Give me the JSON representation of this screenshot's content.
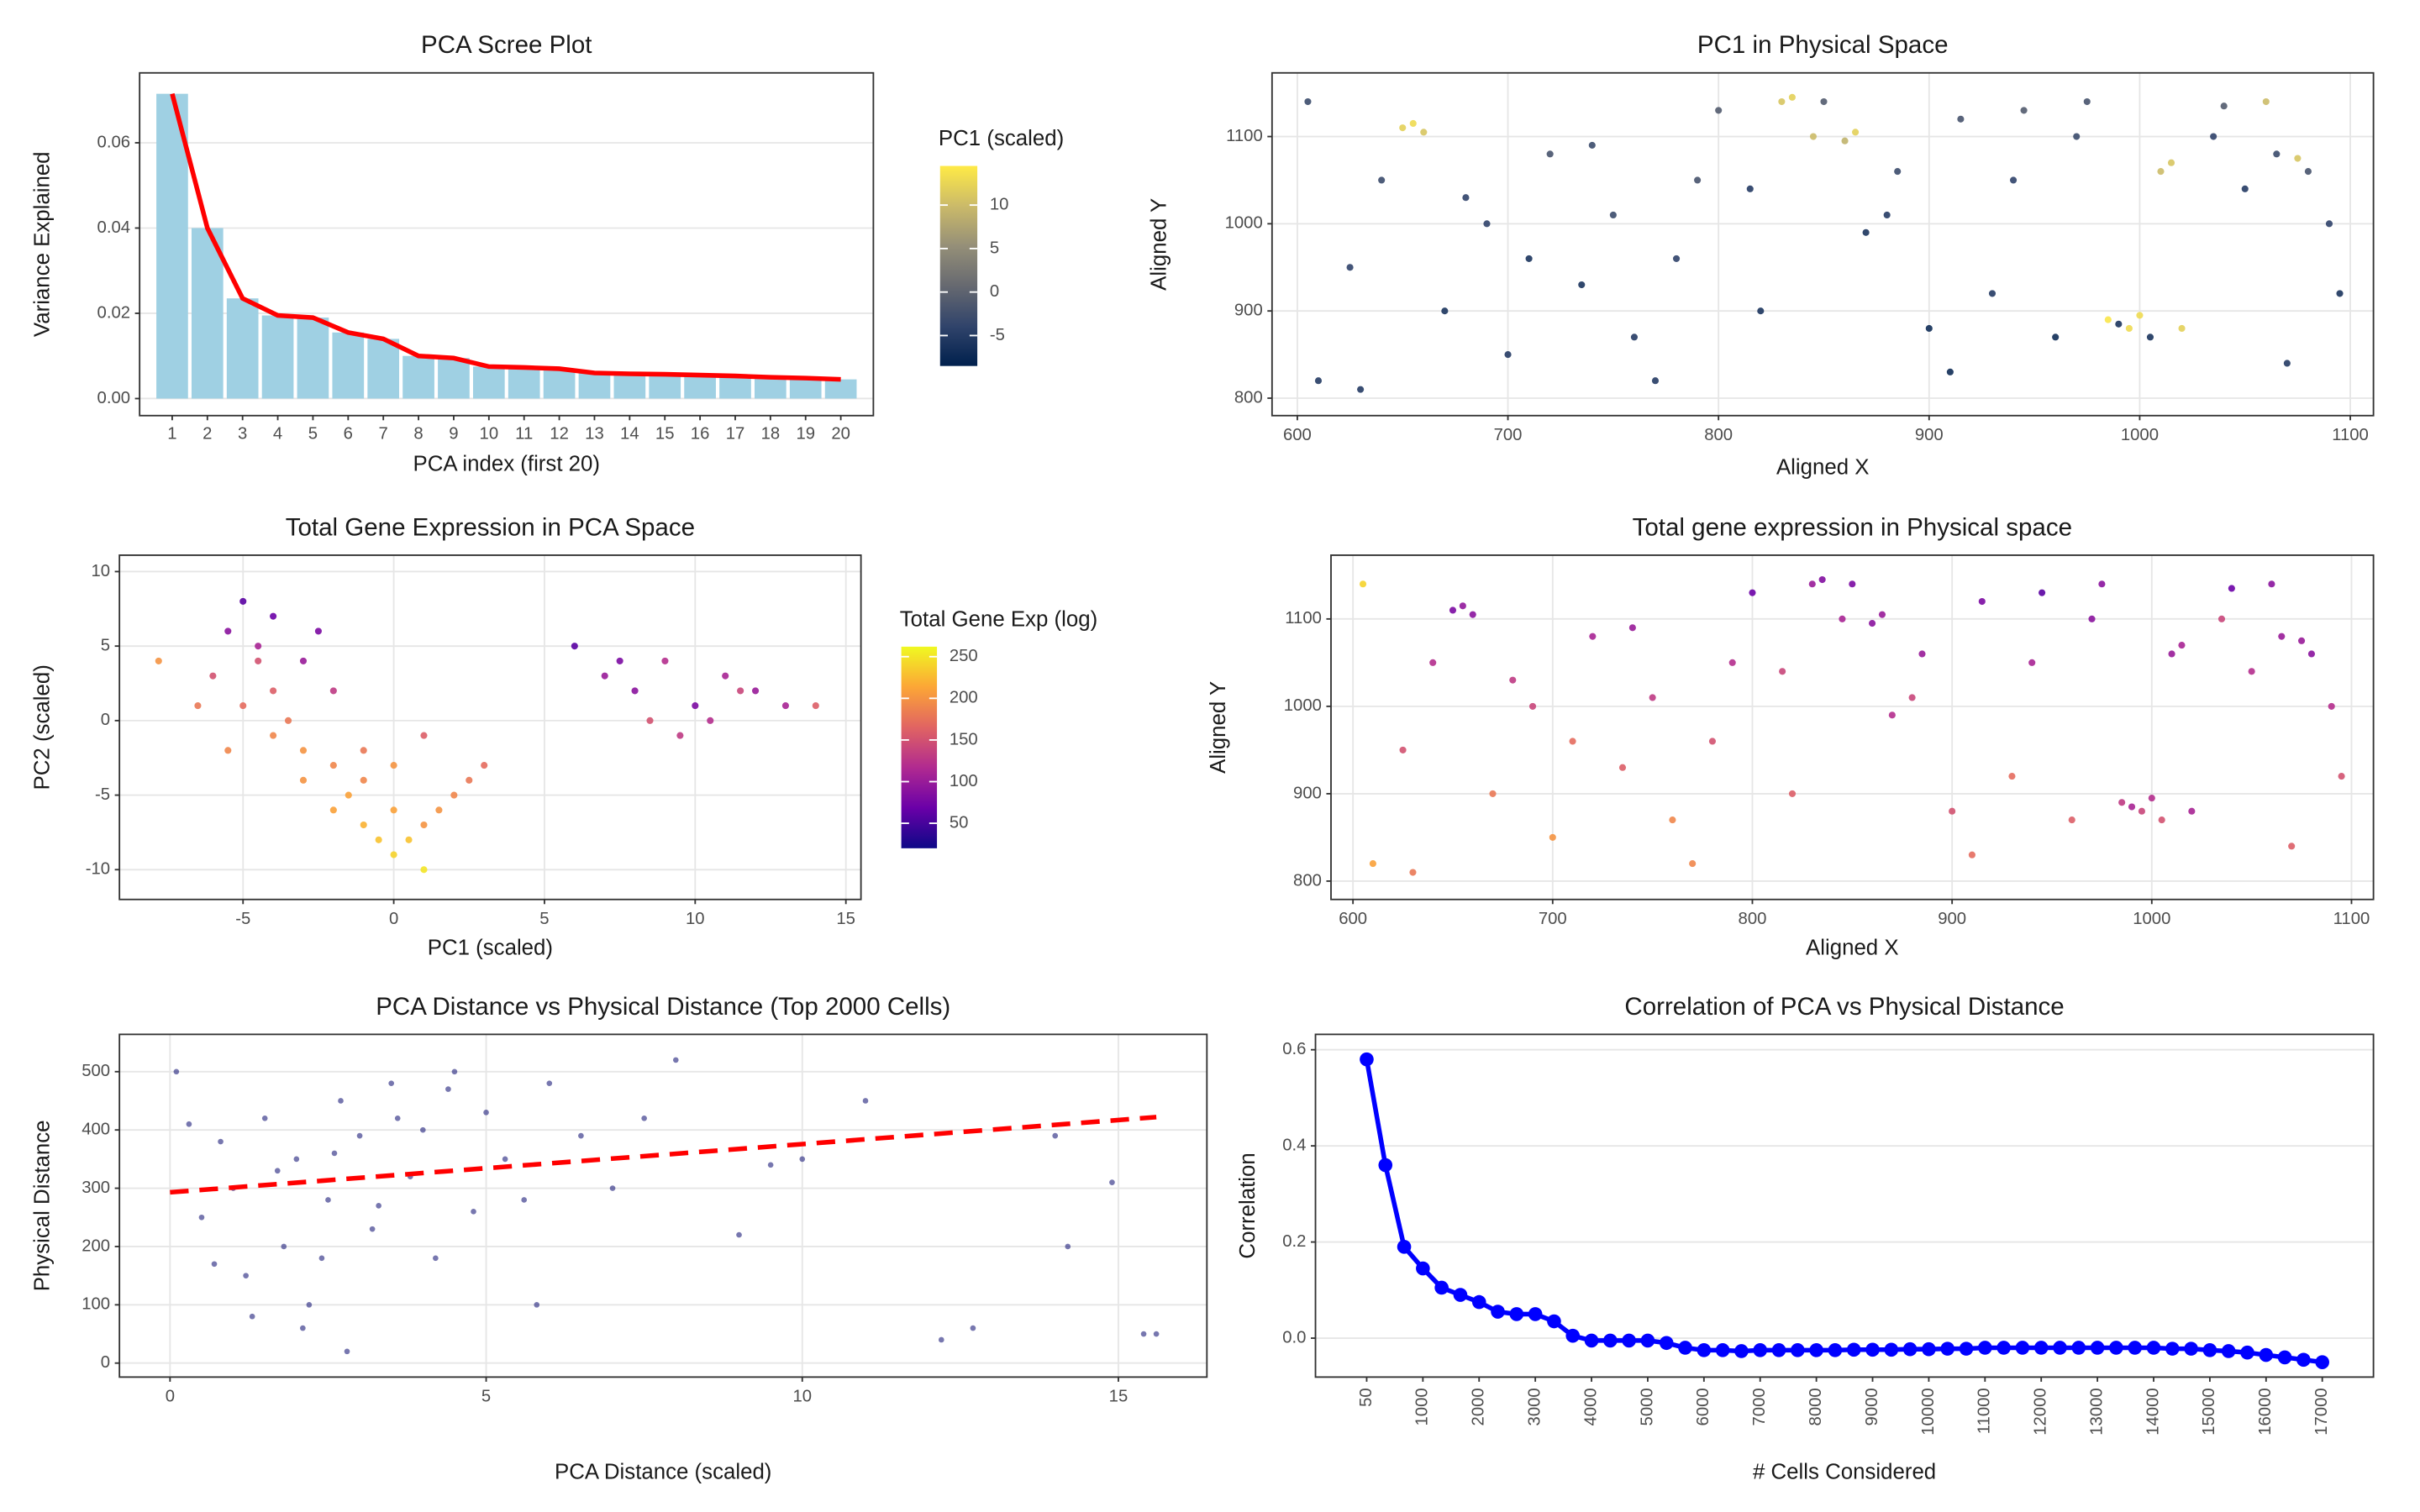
{
  "chart_data": [
    {
      "type": "bar",
      "title": "PCA Scree Plot",
      "xlabel": "PCA index (first 20)",
      "ylabel": "Variance Explained",
      "categories": [
        1,
        2,
        3,
        4,
        5,
        6,
        7,
        8,
        9,
        10,
        11,
        12,
        13,
        14,
        15,
        16,
        17,
        18,
        19,
        20
      ],
      "values": [
        0.0715,
        0.04,
        0.0235,
        0.0195,
        0.019,
        0.0155,
        0.014,
        0.01,
        0.0095,
        0.0075,
        0.0073,
        0.007,
        0.006,
        0.0058,
        0.0057,
        0.0055,
        0.0053,
        0.005,
        0.0048,
        0.0045
      ],
      "color": "#9fd0e3",
      "line_color": "#ff0000",
      "ylim": [
        -0.004,
        0.0764
      ],
      "yticks": [
        {
          "value": 0,
          "label": "0.00"
        },
        {
          "value": 0.02,
          "label": "0.02"
        },
        {
          "value": 0.04,
          "label": "0.04"
        },
        {
          "value": 0.06,
          "label": "0.06"
        }
      ],
      "grid": true
    },
    {
      "type": "scatter",
      "title": "PC1 in Physical Space",
      "xlabel": "Aligned X",
      "ylabel": "Aligned Y",
      "x": [
        610,
        625,
        640,
        650,
        660,
        670,
        690,
        700,
        720,
        735,
        750,
        760,
        780,
        800,
        815,
        830,
        845,
        860,
        870,
        885,
        900,
        915,
        930,
        945,
        960,
        975,
        990,
        1000,
        1010,
        1020,
        1035,
        1050,
        1065,
        1080,
        1095,
        605,
        630,
        680,
        710,
        740,
        770,
        790,
        820,
        850,
        880,
        910,
        940,
        970,
        1005,
        1040,
        1070,
        1090,
        655,
        835,
        865,
        985,
        995,
        1015,
        1060,
        1075
      ],
      "y": [
        820,
        950,
        1050,
        1110,
        1105,
        900,
        1000,
        850,
        1080,
        930,
        1010,
        870,
        960,
        1130,
        1040,
        1140,
        1100,
        1095,
        990,
        1060,
        880,
        1120,
        920,
        1130,
        870,
        1140,
        885,
        895,
        1060,
        880,
        1100,
        1040,
        1080,
        1060,
        920,
        1140,
        810,
        1030,
        960,
        1090,
        820,
        1050,
        900,
        1140,
        1010,
        830,
        1050,
        1100,
        870,
        1135,
        840,
        1000,
        1115,
        1145,
        1105,
        890,
        880,
        1070,
        1140,
        1075
      ],
      "values": [
        -5,
        -4,
        -3,
        12,
        11,
        -6,
        -4,
        -5,
        -2,
        -6,
        -3,
        -5,
        -4,
        -1,
        -5,
        11,
        10,
        9,
        -6,
        -3,
        -7,
        -2,
        -5,
        -1,
        -7,
        -2,
        -6,
        13,
        10,
        12,
        -4,
        -5,
        -3,
        -2,
        -6,
        -3,
        -5,
        -4,
        -6,
        -3,
        -5,
        -2,
        -6,
        -1,
        -5,
        -7,
        -4,
        -3,
        -6,
        -1,
        -5,
        -4,
        13,
        12,
        12,
        14,
        13,
        11,
        10,
        11
      ],
      "xlim": [
        588,
        1111
      ],
      "ylim": [
        780,
        1173
      ],
      "xticks": [
        600,
        700,
        800,
        900,
        1000,
        1100
      ],
      "yticks": [
        800,
        900,
        1000,
        1100
      ],
      "grid": true,
      "colorbar": {
        "title": "PC1 (scaled)",
        "lim": [
          -8.5,
          14.5
        ],
        "ticks": [
          -5,
          0,
          5,
          10
        ],
        "colors": [
          "#00204d",
          "#31446b",
          "#666970",
          "#958f78",
          "#cbba69",
          "#ffea46"
        ]
      }
    },
    {
      "type": "scatter",
      "title": "Total Gene Expression in PCA Space",
      "xlabel": "PC1 (scaled)",
      "ylabel": "PC2 (scaled)",
      "x": [
        -6,
        -5.5,
        -5,
        -4.5,
        -4,
        -4,
        -3.5,
        -3,
        -3,
        -2.5,
        -2,
        -2,
        -1.5,
        -1,
        -1,
        -0.5,
        0,
        0,
        0.5,
        1,
        1,
        1.5,
        2,
        2.5,
        3,
        -5,
        -4,
        -3,
        -2,
        -1,
        0,
        1,
        -6.5,
        -5.5,
        -4.5,
        7,
        8,
        9,
        10,
        11,
        12,
        13,
        8.5,
        9.5,
        10.5,
        11.5,
        6,
        7.5,
        14,
        -7.8
      ],
      "y": [
        3,
        6,
        8,
        5,
        7,
        2,
        0,
        4,
        -2,
        6,
        -3,
        2,
        -5,
        -4,
        -7,
        -8,
        -9,
        -6,
        -8,
        -7,
        -10,
        -6,
        -5,
        -4,
        -3,
        1,
        -1,
        -4,
        -6,
        -2,
        -3,
        -1,
        1,
        -2,
        4,
        3,
        2,
        4,
        1,
        3,
        2,
        1,
        0,
        -1,
        0,
        2,
        5,
        4,
        1,
        4
      ],
      "values": [
        150,
        90,
        60,
        110,
        70,
        160,
        180,
        100,
        200,
        80,
        190,
        130,
        210,
        190,
        220,
        230,
        240,
        210,
        230,
        200,
        250,
        200,
        190,
        180,
        170,
        170,
        190,
        200,
        210,
        180,
        200,
        160,
        180,
        190,
        150,
        100,
        90,
        120,
        80,
        110,
        100,
        110,
        150,
        130,
        120,
        140,
        60,
        80,
        160,
        200
      ],
      "xlim": [
        -9.1,
        15.5
      ],
      "ylim": [
        -12,
        11.1
      ],
      "xticks": [
        -5,
        0,
        5,
        10,
        15
      ],
      "yticks": [
        -10,
        -5,
        0,
        5,
        10
      ],
      "grid": true,
      "colorbar": {
        "title": "Total Gene Exp (log)",
        "lim": [
          20,
          262
        ],
        "ticks": [
          50,
          100,
          150,
          200,
          250
        ],
        "colors": [
          "#0d0887",
          "#6a00a8",
          "#b12a90",
          "#e16462",
          "#fca636",
          "#f0f921"
        ]
      }
    },
    {
      "type": "scatter",
      "title": "Total gene expression in Physical space",
      "xlabel": "Aligned X",
      "ylabel": "Aligned Y",
      "x": [
        610,
        625,
        640,
        650,
        660,
        670,
        690,
        700,
        720,
        735,
        750,
        760,
        780,
        800,
        815,
        830,
        845,
        860,
        870,
        885,
        900,
        915,
        930,
        945,
        960,
        975,
        990,
        1000,
        1010,
        1020,
        1035,
        1050,
        1065,
        1080,
        1095,
        605,
        630,
        680,
        710,
        740,
        770,
        790,
        820,
        850,
        880,
        910,
        940,
        970,
        1005,
        1040,
        1070,
        1090,
        655,
        835,
        865,
        985,
        995,
        1015,
        1060,
        1075
      ],
      "y": [
        820,
        950,
        1050,
        1110,
        1105,
        900,
        1000,
        850,
        1080,
        930,
        1010,
        870,
        960,
        1130,
        1040,
        1140,
        1100,
        1095,
        990,
        1060,
        880,
        1120,
        920,
        1130,
        870,
        1140,
        885,
        895,
        1060,
        880,
        1100,
        1040,
        1080,
        1060,
        920,
        1140,
        810,
        1030,
        960,
        1090,
        820,
        1050,
        900,
        1140,
        1010,
        830,
        1050,
        1100,
        870,
        1135,
        840,
        1000,
        1115,
        1145,
        1105,
        890,
        880,
        1070,
        1140,
        1075
      ],
      "values": [
        210,
        150,
        120,
        80,
        90,
        180,
        140,
        200,
        110,
        160,
        130,
        190,
        150,
        70,
        140,
        100,
        110,
        90,
        120,
        100,
        150,
        80,
        170,
        60,
        160,
        90,
        110,
        120,
        100,
        110,
        140,
        120,
        100,
        90,
        150,
        240,
        180,
        130,
        170,
        100,
        190,
        120,
        160,
        80,
        140,
        170,
        110,
        90,
        150,
        70,
        160,
        120,
        95,
        85,
        100,
        130,
        140,
        110,
        90,
        100
      ],
      "xlim": [
        589,
        1111
      ],
      "ylim": [
        779,
        1173
      ],
      "xticks": [
        600,
        700,
        800,
        900,
        1000,
        1100
      ],
      "yticks": [
        800,
        900,
        1000,
        1100
      ],
      "grid": true,
      "colors": [
        "#0d0887",
        "#6a00a8",
        "#b12a90",
        "#e16462",
        "#fca636",
        "#f0f921"
      ],
      "color_lim": [
        20,
        262
      ]
    },
    {
      "type": "scatter",
      "title": "PCA Distance vs Physical Distance (Top 2000 Cells)",
      "xlabel": "PCA Distance (scaled)",
      "ylabel": "Physical Distance",
      "x": [
        0.1,
        0.3,
        0.5,
        0.8,
        1,
        1.2,
        1.5,
        1.8,
        2,
        2.2,
        2.5,
        2.7,
        3,
        3.2,
        3.5,
        3.8,
        4,
        4.2,
        4.5,
        4.8,
        5,
        5.3,
        5.6,
        6,
        6.5,
        7,
        7.5,
        8,
        9,
        10,
        11,
        12.2,
        12.7,
        14,
        14.2,
        14.9,
        15.4,
        15.6,
        1.3,
        1.7,
        2.4,
        2.8,
        3.3,
        3.6,
        4.4,
        0.7,
        2.1,
        2.6,
        5.8,
        9.5
      ],
      "y": [
        500,
        410,
        250,
        380,
        300,
        150,
        420,
        200,
        350,
        100,
        280,
        450,
        390,
        230,
        480,
        320,
        400,
        180,
        500,
        260,
        430,
        350,
        280,
        480,
        390,
        300,
        420,
        520,
        220,
        350,
        450,
        40,
        60,
        390,
        200,
        310,
        50,
        50,
        80,
        330,
        180,
        20,
        270,
        420,
        470,
        170,
        60,
        360,
        100,
        340
      ],
      "color": "#1c1c7a",
      "xlim": [
        -0.8,
        16.4
      ],
      "ylim": [
        -24,
        564
      ],
      "xticks": [
        0,
        5,
        10,
        15
      ],
      "yticks": [
        0,
        100,
        200,
        300,
        400,
        500
      ],
      "grid": true,
      "trend": {
        "x": [
          0,
          15.6
        ],
        "y": [
          293,
          422
        ],
        "color": "#ff0000"
      }
    },
    {
      "type": "line",
      "title": "Correlation of PCA vs Physical Distance",
      "xlabel": "# Cells Considered",
      "ylabel": "Correlation",
      "categories": [
        50,
        null,
        null,
        1000,
        null,
        null,
        2000,
        null,
        null,
        3000,
        null,
        null,
        4000,
        null,
        null,
        5000,
        null,
        null,
        6000,
        null,
        null,
        7000,
        null,
        null,
        8000,
        null,
        null,
        9000,
        null,
        null,
        10000,
        null,
        null,
        11000,
        null,
        null,
        12000,
        null,
        null,
        13000,
        null,
        null,
        14000,
        null,
        null,
        15000,
        null,
        null,
        16000,
        null,
        null,
        17000
      ],
      "values": [
        0.58,
        0.36,
        0.19,
        0.145,
        0.105,
        0.09,
        0.075,
        0.055,
        0.05,
        0.05,
        0.035,
        0.005,
        -0.005,
        -0.005,
        -0.005,
        -0.005,
        -0.01,
        -0.02,
        -0.025,
        -0.025,
        -0.027,
        -0.025,
        -0.025,
        -0.025,
        -0.025,
        -0.025,
        -0.024,
        -0.024,
        -0.024,
        -0.023,
        -0.023,
        -0.022,
        -0.022,
        -0.02,
        -0.02,
        -0.02,
        -0.02,
        -0.02,
        -0.02,
        -0.02,
        -0.02,
        -0.02,
        -0.02,
        -0.022,
        -0.022,
        -0.025,
        -0.027,
        -0.03,
        -0.035,
        -0.04,
        -0.045,
        -0.05
      ],
      "color": "#0000ff",
      "ylim": [
        -0.081,
        0.632
      ],
      "yticks": [
        {
          "value": 0,
          "label": "0.0"
        },
        0.2,
        0.4,
        0.6
      ],
      "grid": true,
      "x_tick_rotation": 90
    }
  ]
}
